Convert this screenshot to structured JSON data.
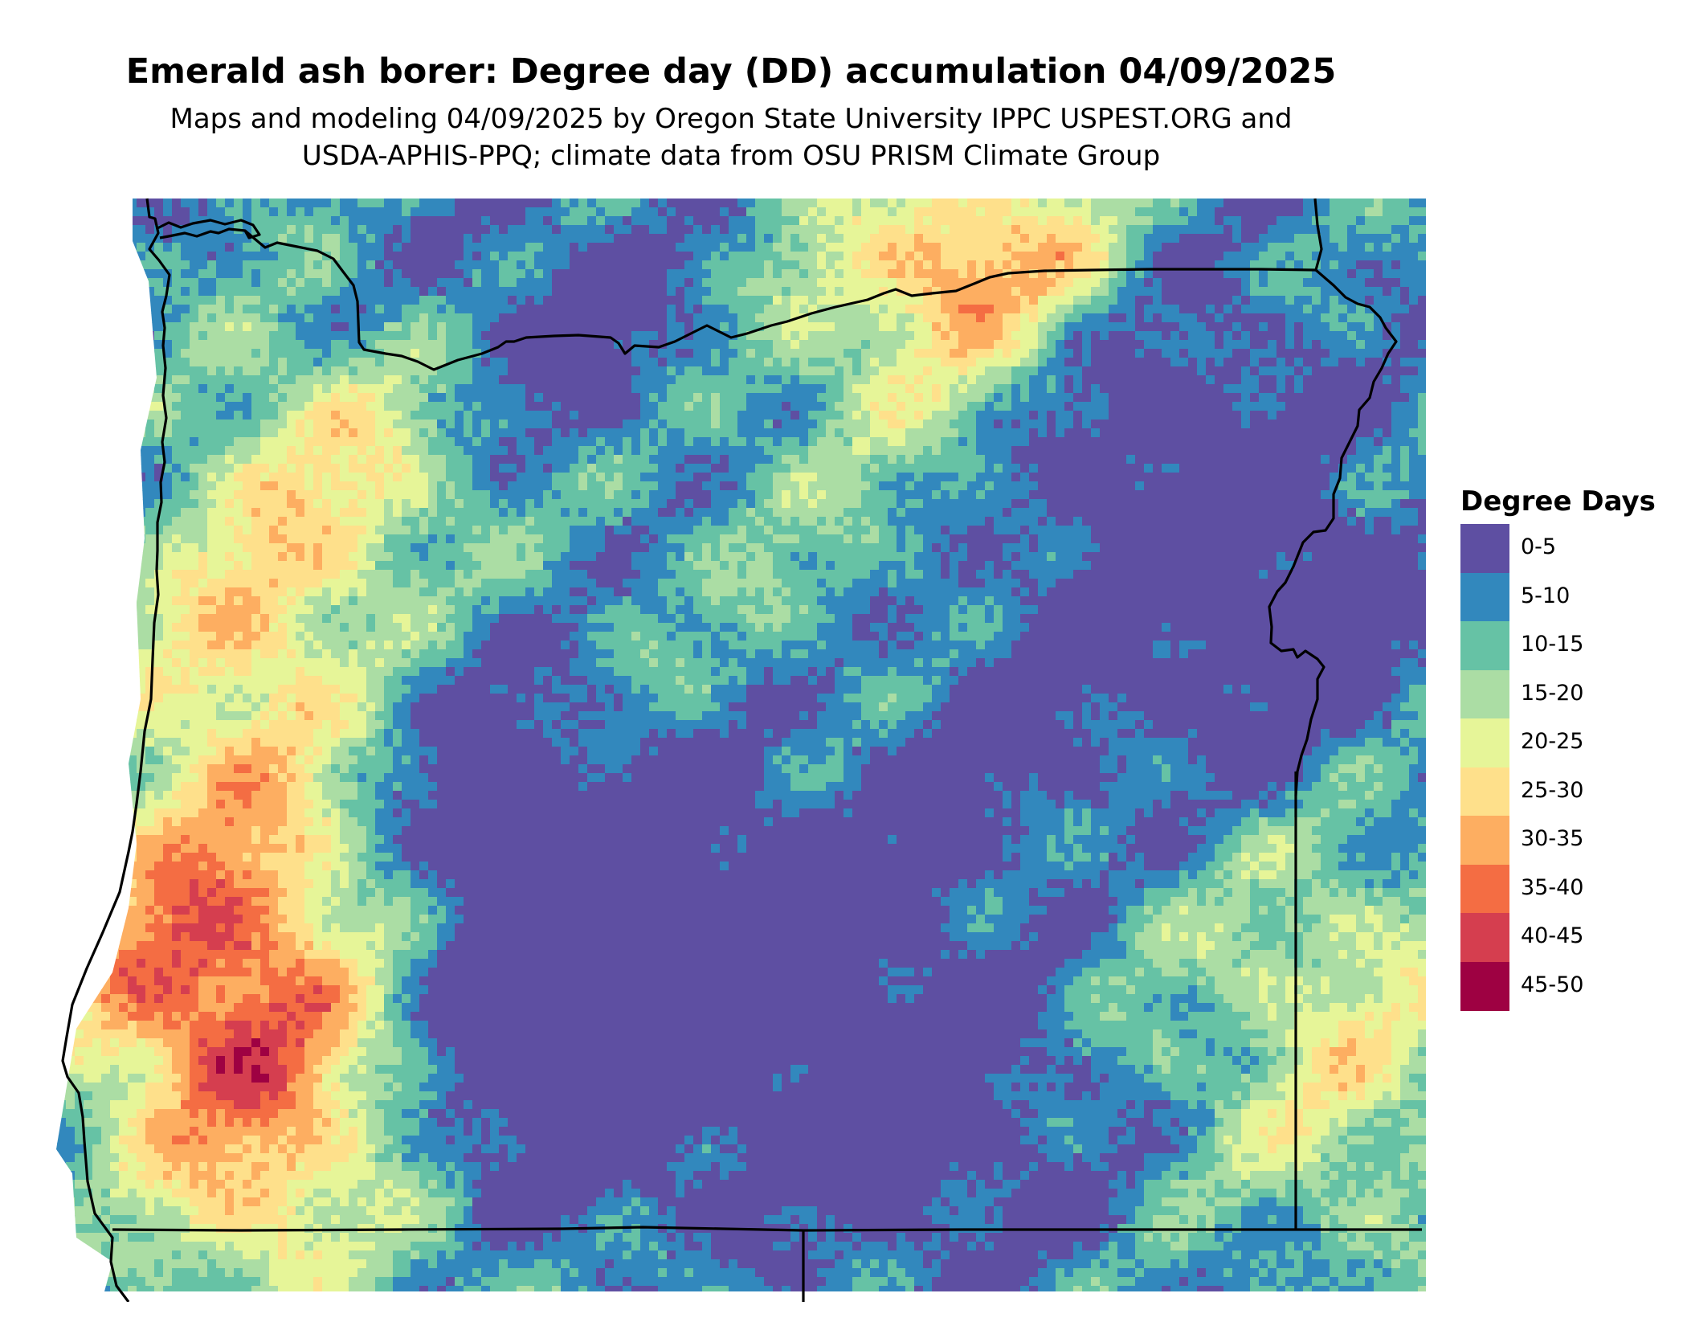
{
  "title": "Emerald ash borer: Degree day (DD) accumulation 04/09/2025",
  "subtitle_line1": "Maps and modeling 04/09/2025 by Oregon State University IPPC USPEST.ORG and",
  "subtitle_line2": "USDA-APHIS-PPQ; climate data from OSU PRISM Climate Group",
  "legend": {
    "title": "Degree Days",
    "items": [
      {
        "label": "0-5",
        "color": "#5e4fa2"
      },
      {
        "label": "5-10",
        "color": "#3288bd"
      },
      {
        "label": "10-15",
        "color": "#66c2a5"
      },
      {
        "label": "15-20",
        "color": "#abdda4"
      },
      {
        "label": "20-25",
        "color": "#e6f598"
      },
      {
        "label": "25-30",
        "color": "#fee08b"
      },
      {
        "label": "30-35",
        "color": "#fdae61"
      },
      {
        "label": "35-40",
        "color": "#f46d43"
      },
      {
        "label": "40-45",
        "color": "#d53e4f"
      },
      {
        "label": "45-50",
        "color": "#9e0142"
      }
    ]
  }
}
